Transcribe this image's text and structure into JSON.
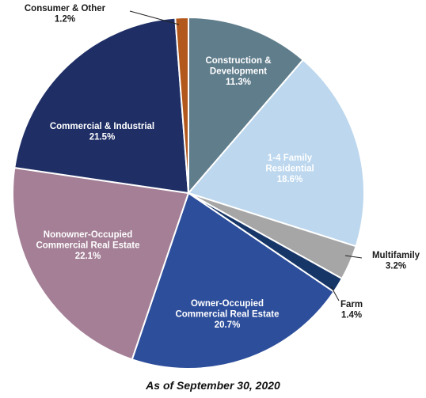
{
  "chart_data": {
    "type": "pie",
    "caption": "As of September 30, 2020",
    "slices": [
      {
        "name_lines": [
          "Construction &",
          "Development"
        ],
        "value": 11.3,
        "value_label": "11.3%",
        "color": "#607d8c",
        "label_pos": "inside"
      },
      {
        "name_lines": [
          "1-4 Family",
          "Residential"
        ],
        "value": 18.6,
        "value_label": "18.6%",
        "color": "#bcd7ee",
        "label_pos": "inside"
      },
      {
        "name_lines": [
          "Multifamily"
        ],
        "value": 3.2,
        "value_label": "3.2%",
        "color": "#a6a6a6",
        "label_pos": "outside"
      },
      {
        "name_lines": [
          "Farm"
        ],
        "value": 1.4,
        "value_label": "1.4%",
        "color": "#173668",
        "label_pos": "outside"
      },
      {
        "name_lines": [
          "Owner-Occupied",
          "Commercial Real Estate"
        ],
        "value": 20.7,
        "value_label": "20.7%",
        "color": "#2d4e9b",
        "label_pos": "inside"
      },
      {
        "name_lines": [
          "Nonowner-Occupied",
          "Commercial Real Estate"
        ],
        "value": 22.1,
        "value_label": "22.1%",
        "color": "#a47f96",
        "label_pos": "inside"
      },
      {
        "name_lines": [
          "Commercial & Industrial"
        ],
        "value": 21.5,
        "value_label": "21.5%",
        "color": "#1f2f66",
        "label_pos": "inside"
      },
      {
        "name_lines": [
          "Consumer & Other"
        ],
        "value": 1.2,
        "value_label": "1.2%",
        "color": "#b3581c",
        "label_pos": "outside"
      }
    ]
  }
}
